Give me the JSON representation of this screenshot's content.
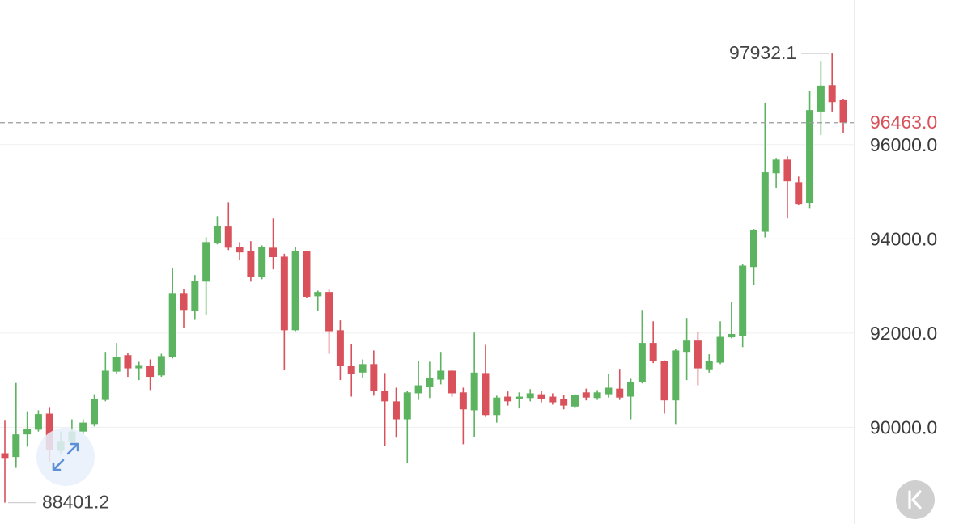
{
  "chart_data": {
    "type": "candlestick",
    "open": [
      89450,
      89370,
      89850,
      89950,
      90290,
      89500,
      89690,
      89910,
      90070,
      90580,
      91180,
      91530,
      91250,
      91300,
      91100,
      91490,
      92850,
      92470,
      93090,
      93910,
      94260,
      93830,
      93740,
      93190,
      93810,
      93620,
      92060,
      93730,
      92780,
      92870,
      92060,
      91300,
      91160,
      91340,
      90770,
      90550,
      90170,
      90720,
      90860,
      91010,
      91200,
      90740,
      90360,
      91150,
      90260,
      90650,
      90600,
      90620,
      90700,
      90650,
      90600,
      90440,
      90740,
      90620,
      90700,
      90820,
      90650,
      90960,
      91790,
      91410,
      90570,
      91600,
      91840,
      91230,
      91370,
      91910,
      91940,
      93400,
      94150,
      95390,
      95680,
      95200,
      94760,
      96700,
      97260,
      96940
    ],
    "high": [
      90140,
      90940,
      90340,
      90360,
      90430,
      89910,
      90170,
      90170,
      90700,
      91600,
      91790,
      91580,
      91390,
      91440,
      91560,
      93380,
      92940,
      93230,
      94030,
      94480,
      94770,
      93930,
      93950,
      93860,
      94430,
      93680,
      93830,
      93740,
      92900,
      92920,
      92270,
      91770,
      91440,
      91630,
      91150,
      90840,
      90770,
      91410,
      91390,
      91600,
      91210,
      90840,
      92010,
      91750,
      90670,
      90760,
      90740,
      90810,
      90770,
      90720,
      90690,
      90700,
      90820,
      90790,
      91130,
      91240,
      91030,
      92490,
      92250,
      91420,
      91660,
      92320,
      92030,
      91550,
      92250,
      92660,
      93470,
      94210,
      96890,
      95700,
      95750,
      95320,
      97130,
      97760,
      97932.1,
      96970
    ],
    "low": [
      88401.2,
      89140,
      89590,
      89910,
      89280,
      89420,
      89620,
      89860,
      90020,
      90550,
      91130,
      91070,
      91000,
      90790,
      91070,
      91460,
      92110,
      92280,
      92390,
      93880,
      93760,
      93540,
      93090,
      93140,
      93350,
      91220,
      92040,
      92750,
      92470,
      91560,
      91000,
      90650,
      91050,
      90670,
      89610,
      89780,
      89250,
      90580,
      90620,
      90910,
      90650,
      89640,
      89790,
      90220,
      90100,
      90460,
      90400,
      90550,
      90530,
      90480,
      90380,
      90410,
      90570,
      90580,
      90630,
      90580,
      90170,
      90930,
      91360,
      90290,
      90070,
      91000,
      90890,
      91160,
      91340,
      91890,
      91700,
      93020,
      94030,
      95080,
      94430,
      94720,
      94650,
      96200,
      96700,
      96250
    ],
    "close": [
      89350,
      89850,
      89970,
      90280,
      89520,
      89710,
      89910,
      90100,
      90600,
      91200,
      91490,
      91250,
      91320,
      91070,
      91510,
      92850,
      92490,
      93110,
      93930,
      94280,
      93810,
      93710,
      93190,
      93830,
      93610,
      92060,
      93730,
      92770,
      92870,
      92040,
      91300,
      91130,
      91340,
      90770,
      90550,
      90170,
      90740,
      90890,
      91050,
      91200,
      90720,
      90380,
      91160,
      90260,
      90630,
      90550,
      90650,
      90720,
      90600,
      90530,
      90460,
      90690,
      90630,
      90740,
      90840,
      90630,
      90960,
      91790,
      91410,
      90570,
      91630,
      91840,
      91250,
      91410,
      91920,
      91980,
      93430,
      94190,
      95410,
      95680,
      95220,
      94740,
      96730,
      97250,
      96900,
      96463
    ],
    "up_color": "#5cb360",
    "down_color": "#d9525b",
    "ylim": [
      88000,
      99066
    ],
    "yticks": [
      {
        "value": 90000,
        "label": "90000.0"
      },
      {
        "value": 92000,
        "label": "92000.0"
      },
      {
        "value": 94000,
        "label": "94000.0"
      },
      {
        "value": 96000,
        "label": "96000.0"
      }
    ],
    "grid": true,
    "last_price": {
      "value": 96463,
      "label": "96463.0",
      "color": "#d9525b"
    }
  }
}
